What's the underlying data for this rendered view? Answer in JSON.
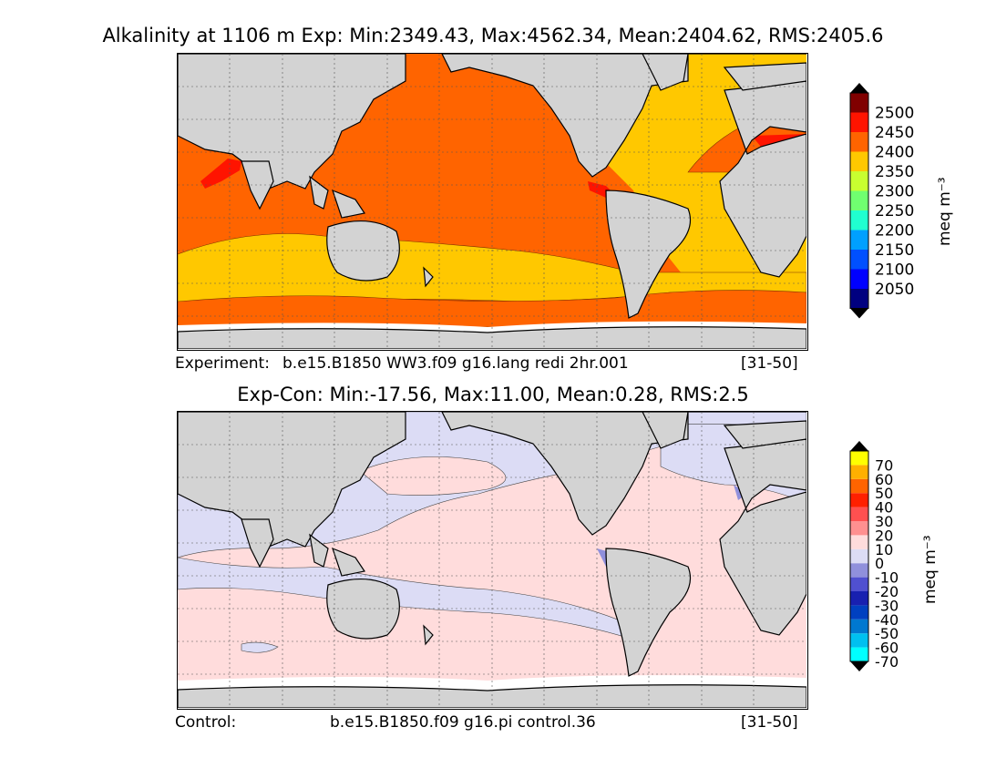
{
  "top_panel": {
    "title": "Alkalinity at 1106 m Exp: Min:2349.43, Max:4562.34, Mean:2404.62, RMS:2405.6",
    "footer_left": "Experiment:",
    "footer_center": "b.e15.B1850 WW3.f09 g16.lang redi 2hr.001",
    "footer_right": "[31-50]",
    "colorbar": {
      "ticks": [
        "2500",
        "2450",
        "2400",
        "2350",
        "2300",
        "2250",
        "2200",
        "2150",
        "2100",
        "2050"
      ],
      "colors": [
        "#000080",
        "#0000ff",
        "#0050ff",
        "#00a0ff",
        "#20ffd0",
        "#70ff70",
        "#c8ff30",
        "#ffc800",
        "#ff6400",
        "#ff1400",
        "#800000"
      ],
      "unit": "meq m⁻³"
    }
  },
  "bottom_panel": {
    "title": "Exp-Con: Min:-17.56, Max:11.00, Mean:0.28, RMS:2.5",
    "footer_left": "Control:",
    "footer_center": "b.e15.B1850.f09 g16.pi control.36",
    "footer_right": "[31-50]",
    "colorbar": {
      "ticks": [
        "70",
        "60",
        "50",
        "40",
        "30",
        "20",
        "10",
        "0",
        "-10",
        "-20",
        "-30",
        "-40",
        "-50",
        "-60",
        "-70"
      ],
      "colors": [
        "#00ffff",
        "#00c0f0",
        "#0078d0",
        "#0040c0",
        "#1820b0",
        "#5050d0",
        "#9090dc",
        "#dcdcf5",
        "#ffdcdc",
        "#ff9090",
        "#ff5050",
        "#ff2000",
        "#ff6400",
        "#ffb000",
        "#ffff00"
      ],
      "unit": "meq m⁻³"
    }
  },
  "colors": {
    "land": "#d3d3d3",
    "ice": "#ffffff",
    "exp_main": "#ff6400",
    "exp_south": "#ffc800",
    "exp_high": "#ff1400",
    "diff_pos": "#ffdcdc",
    "diff_neg": "#dcdcf5",
    "diff_neg2": "#9090dc"
  }
}
